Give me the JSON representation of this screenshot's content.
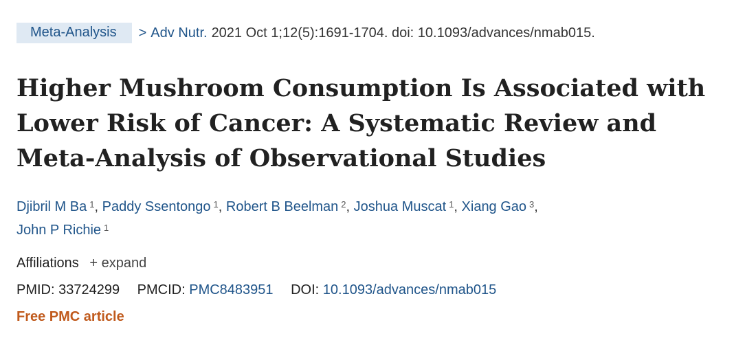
{
  "header": {
    "type_badge": "Meta-Analysis",
    "chevron": ">",
    "journal": "Adv Nutr.",
    "citation": "2021 Oct 1;12(5):1691-1704. doi: 10.1093/advances/nmab015."
  },
  "title": "Higher Mushroom Consumption Is Associated with Lower Risk of Cancer: A Systematic Review and Meta-Analysis of Observational Studies",
  "authors": [
    {
      "name": "Djibril M Ba",
      "aff": "1"
    },
    {
      "name": "Paddy Ssentongo",
      "aff": "1"
    },
    {
      "name": "Robert B Beelman",
      "aff": "2"
    },
    {
      "name": "Joshua Muscat",
      "aff": "1"
    },
    {
      "name": "Xiang Gao",
      "aff": "3"
    },
    {
      "name": "John P Richie",
      "aff": "1"
    }
  ],
  "affiliations": {
    "label": "Affiliations",
    "expand": "+ expand"
  },
  "identifiers": {
    "pmid_label": "PMID:",
    "pmid": "33724299",
    "pmcid_label": "PMCID:",
    "pmcid": "PMC8483951",
    "doi_label": "DOI:",
    "doi": "10.1093/advances/nmab015"
  },
  "free_article": "Free PMC article"
}
